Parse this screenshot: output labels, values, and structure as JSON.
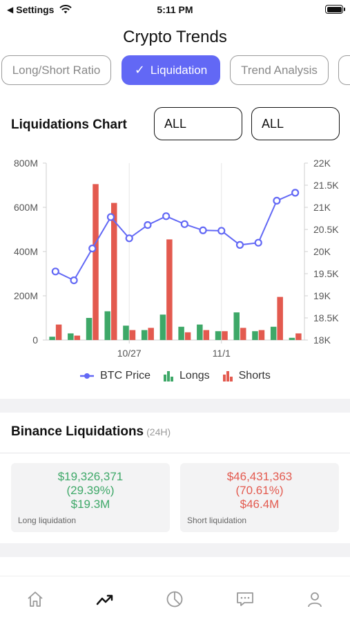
{
  "status_bar": {
    "back_label": "Settings",
    "time": "5:11 PM"
  },
  "page_title": "Crypto Trends",
  "tabs": [
    {
      "label": "Long/Short Ratio",
      "active": false
    },
    {
      "label": "Liquidation",
      "active": true
    },
    {
      "label": "Trend Analysis",
      "active": false
    },
    {
      "label": "",
      "active": false
    }
  ],
  "chart_section": {
    "title": "Liquidations Chart",
    "filter1": "ALL",
    "filter2": "ALL"
  },
  "chart_data": {
    "type": "bar",
    "y_left": {
      "min": 0,
      "max": 800,
      "ticks": [
        "0",
        "200M",
        "400M",
        "600M",
        "800M"
      ]
    },
    "y_right": {
      "min": 18000,
      "max": 22000,
      "ticks": [
        "18K",
        "18.5K",
        "19K",
        "19.5K",
        "20K",
        "20.5K",
        "21K",
        "21.5K",
        "22K"
      ]
    },
    "x_tick_labels": [
      {
        "index": 4,
        "label": "10/27"
      },
      {
        "index": 9,
        "label": "11/1"
      }
    ],
    "series": [
      {
        "name": "Longs",
        "color": "#3ea868",
        "values": [
          15,
          30,
          100,
          130,
          65,
          45,
          115,
          60,
          70,
          40,
          125,
          40,
          60,
          10
        ]
      },
      {
        "name": "Shorts",
        "color": "#e35a4f",
        "values": [
          70,
          20,
          705,
          620,
          45,
          55,
          455,
          35,
          45,
          40,
          55,
          45,
          195,
          30
        ]
      },
      {
        "name": "BTC Price",
        "color": "#6268f5",
        "values": [
          19550,
          19350,
          20070,
          20780,
          20300,
          20600,
          20800,
          20620,
          20480,
          20470,
          20150,
          20200,
          21150,
          21330
        ]
      }
    ]
  },
  "legend": [
    "BTC Price",
    "Longs",
    "Shorts"
  ],
  "binance": {
    "title": "Binance Liquidations",
    "period": "(24H)",
    "long": {
      "amount": "$19,326,371",
      "percent": "(29.39%)",
      "short_amount": "$19.3M",
      "label": "Long liquidation"
    },
    "short": {
      "amount": "$46,431,363",
      "percent": "(70.61%)",
      "short_amount": "$46.4M",
      "label": "Short liquidation"
    }
  },
  "nav": [
    "home-icon",
    "trend-icon",
    "pie-chart-icon",
    "message-icon",
    "user-icon"
  ]
}
